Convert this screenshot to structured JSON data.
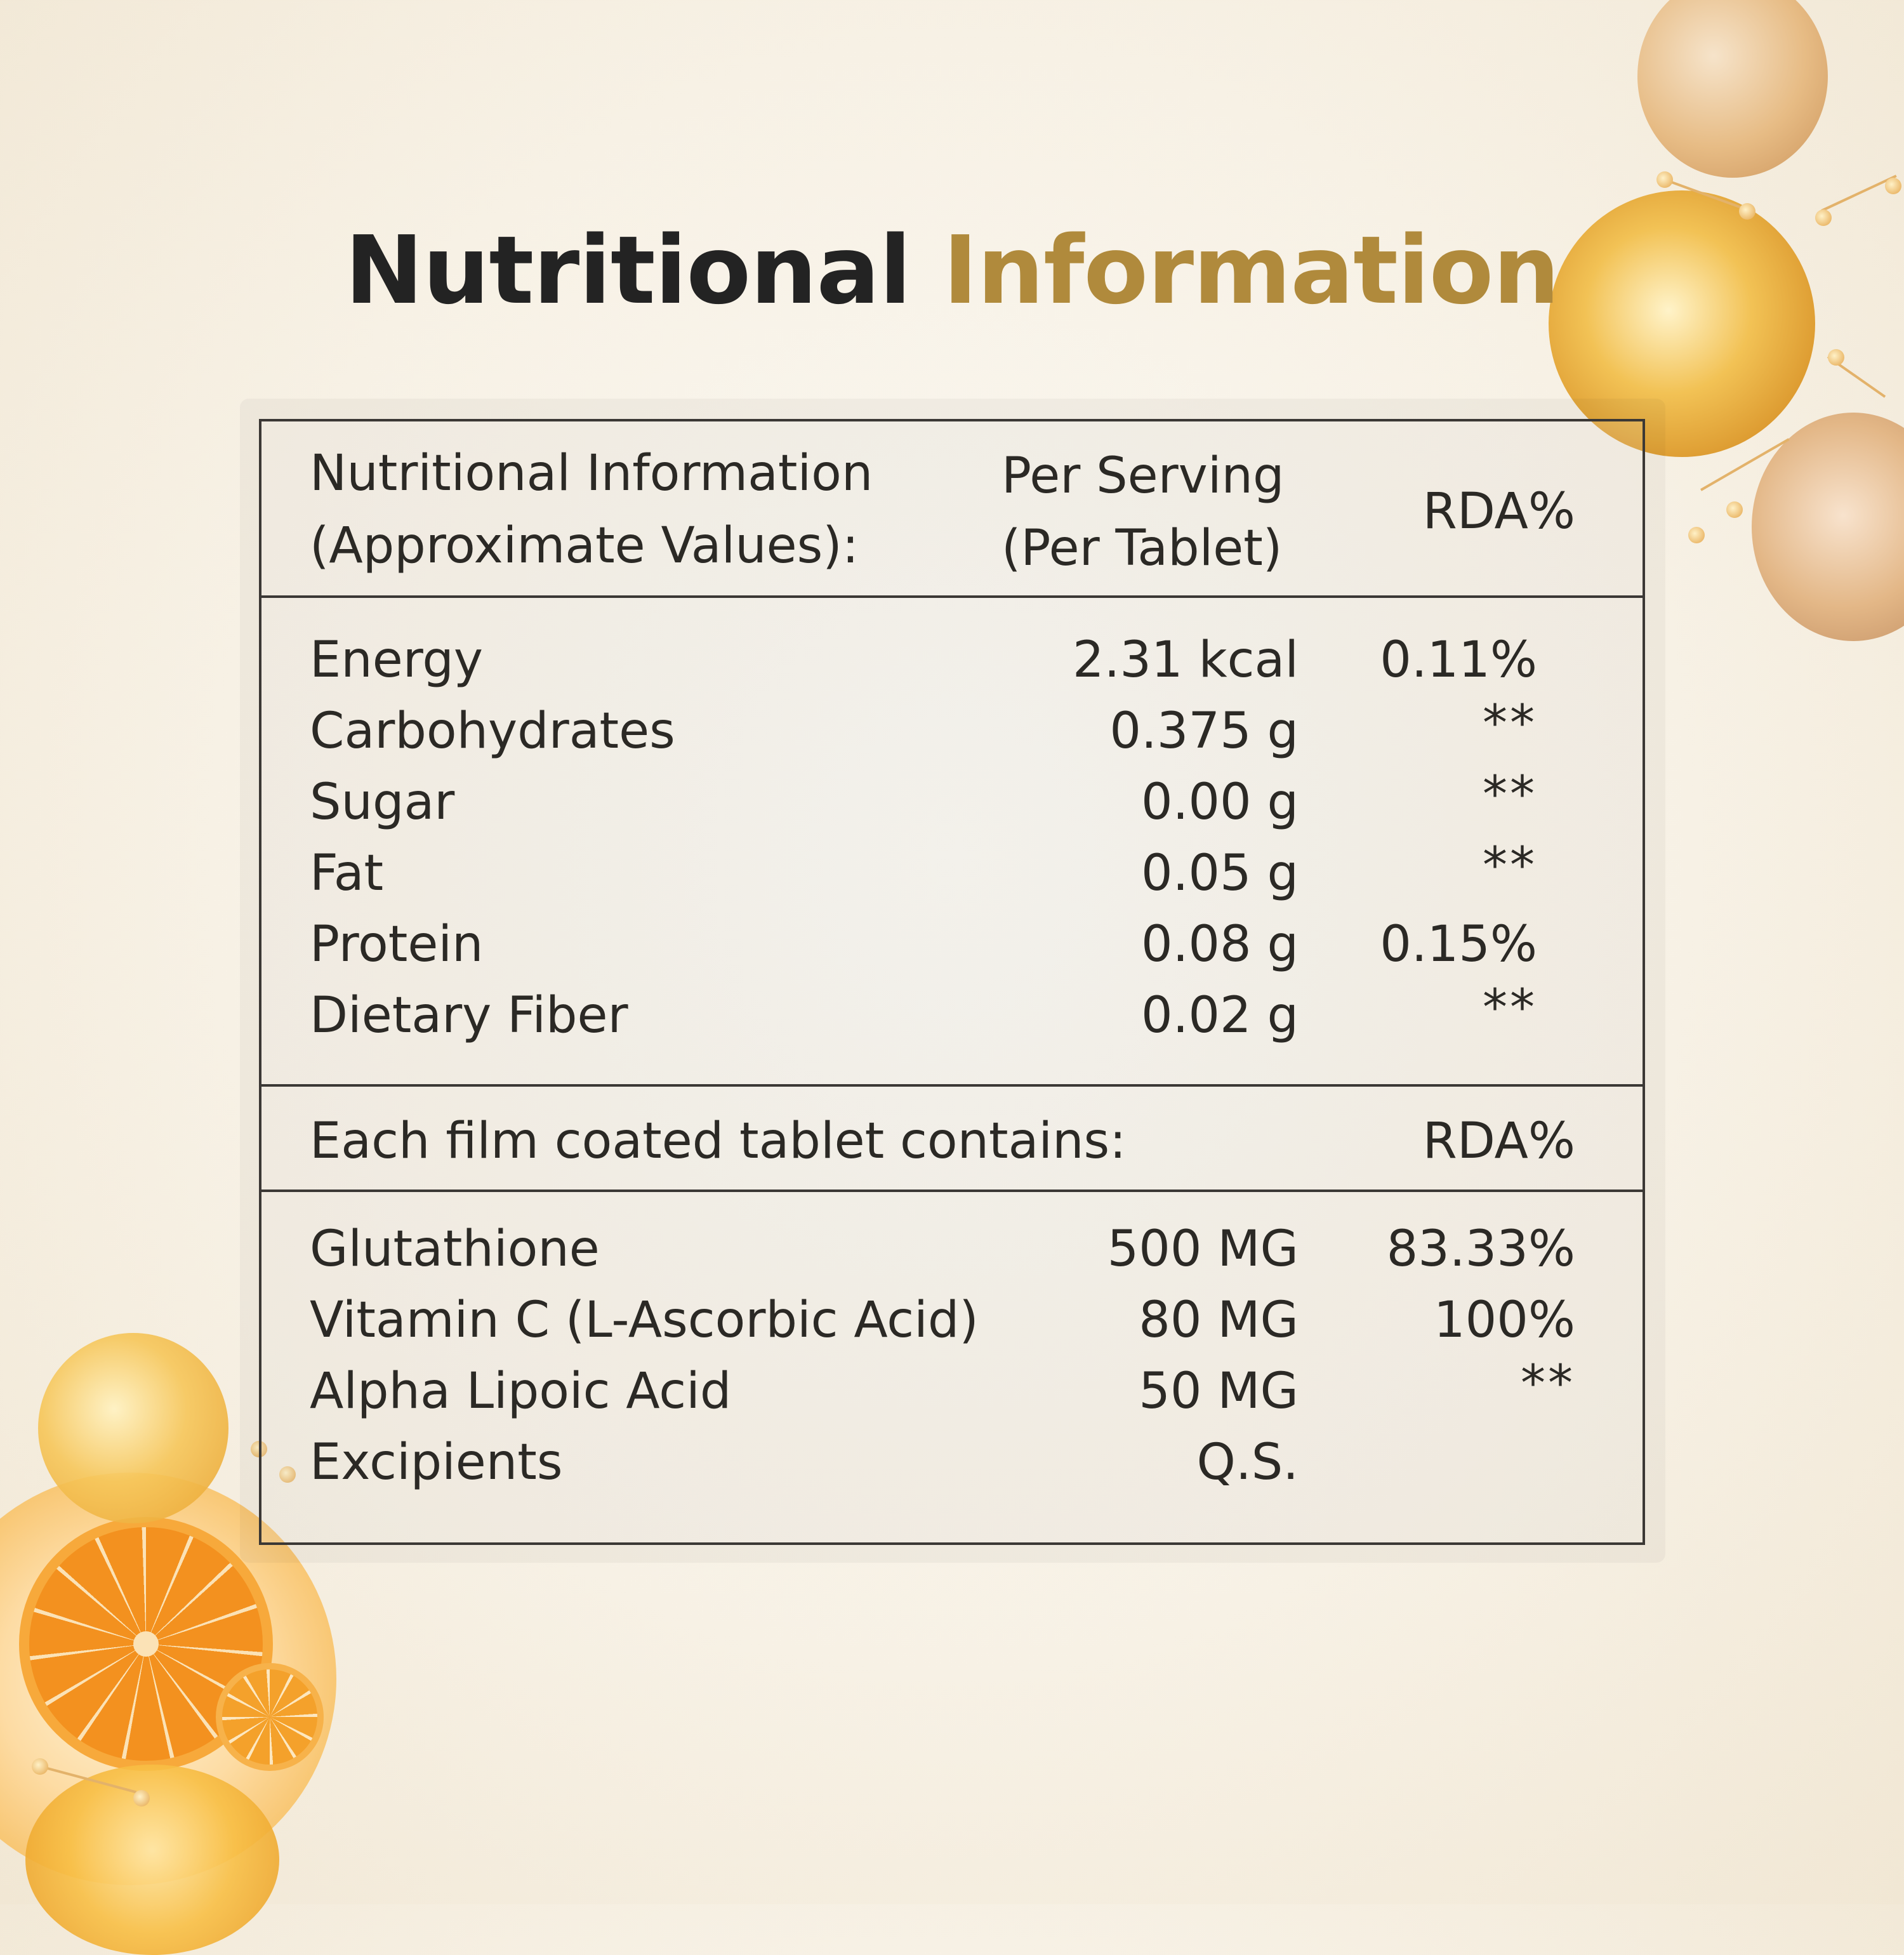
{
  "title": {
    "part1": "Nutritional",
    "part2": "Information"
  },
  "header": {
    "col1_line1": "Nutritional Information",
    "col1_line2": "(Approximate Values):",
    "col2_line1": "Per Serving",
    "col2_line2": "(Per Tablet)",
    "col3": "RDA%"
  },
  "nutrients": [
    {
      "name": "Energy",
      "value": "2.31 kcal",
      "rda": "0.11%"
    },
    {
      "name": "Carbohydrates",
      "value": "0.375 g",
      "rda": "**"
    },
    {
      "name": "Sugar",
      "value": "0.00 g",
      "rda": "**"
    },
    {
      "name": "Fat",
      "value": "0.05 g",
      "rda": "**"
    },
    {
      "name": "Protein",
      "value": "0.08 g",
      "rda": "0.15%"
    },
    {
      "name": "Dietary Fiber",
      "value": "0.02 g",
      "rda": "**"
    }
  ],
  "tablet_header": {
    "label": "Each film coated tablet contains:",
    "rda": "RDA%"
  },
  "ingredients": [
    {
      "name": "Glutathione",
      "value": "500 MG",
      "rda": "83.33%"
    },
    {
      "name": "Vitamin C (L-Ascorbic Acid)",
      "value": "80 MG",
      "rda": "100%"
    },
    {
      "name": "Alpha Lipoic Acid",
      "value": "50 MG",
      "rda": "**"
    },
    {
      "name": "Excipients",
      "value": "Q.S.",
      "rda": ""
    }
  ],
  "colors": {
    "text": "#232323",
    "accent": "#b08a3c",
    "border": "#3b3835"
  }
}
